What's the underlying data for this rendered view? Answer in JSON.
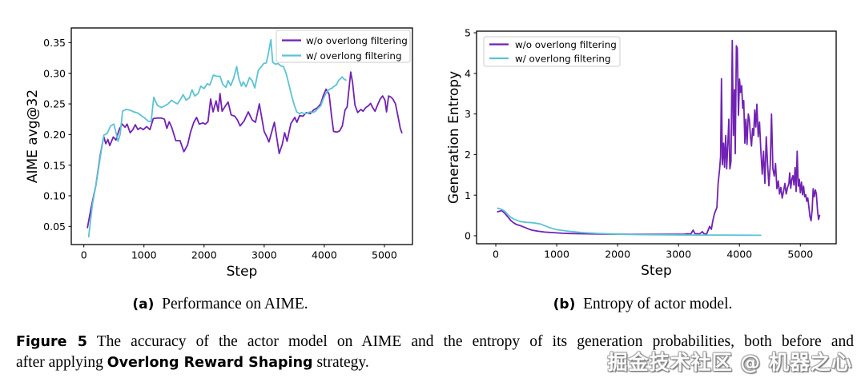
{
  "captions": {
    "a_tag": "(a)",
    "a_text": " Performance on AIME.",
    "b_tag": "(b)",
    "b_text": " Entropy of actor model.",
    "figure_label": "Figure 5",
    "figure_line1": " The accuracy of the actor model on AIME and the entropy of its generation probabilities, both before and",
    "figure_line2_pre": "after applying ",
    "figure_line2_bold": "Overlong Reward Shaping",
    "figure_line2_post": " strategy.",
    "watermark": "掘金技术社区 @ 机器之心"
  },
  "colors": {
    "purple": "#7122b4",
    "cyan": "#5bc3d5"
  },
  "chart_data": [
    {
      "type": "line",
      "xlabel": "Step",
      "ylabel": "AIME avg@32",
      "xlim": [
        -209,
        5467
      ],
      "ylim": [
        0.0204,
        0.374
      ],
      "xticks": [
        0,
        1000,
        2000,
        3000,
        4000,
        5000
      ],
      "yticks": [
        0.05,
        0.1,
        0.15,
        0.2,
        0.25,
        0.3,
        0.35
      ],
      "ytick_decimals": 2,
      "grid": false,
      "legend_position": "upper right",
      "series": [
        {
          "name": "w/o overlong filtering",
          "color": "#7122b4",
          "x": [
            60,
            120,
            200,
            270,
            330,
            365,
            400,
            430,
            490,
            535,
            590,
            640,
            685,
            720,
            770,
            815,
            855,
            900,
            940,
            990,
            1045,
            1100,
            1155,
            1220,
            1290,
            1340,
            1380,
            1420,
            1465,
            1530,
            1600,
            1665,
            1725,
            1775,
            1830,
            1875,
            1920,
            1980,
            2020,
            2065,
            2110,
            2150,
            2200,
            2235,
            2265,
            2300,
            2350,
            2400,
            2450,
            2510,
            2555,
            2600,
            2665,
            2735,
            2800,
            2855,
            2920,
            3000,
            3035,
            3080,
            3170,
            3250,
            3300,
            3340,
            3380,
            3445,
            3510,
            3545,
            3590,
            3645,
            3700,
            3765,
            3820,
            3890,
            3940,
            3985,
            4030,
            4080,
            4120,
            4155,
            4210,
            4255,
            4300,
            4345,
            4380,
            4415,
            4440,
            4470,
            4510,
            4555,
            4610,
            4645,
            4690,
            4735,
            4770,
            4805,
            4845,
            4885,
            4930,
            4970,
            5010,
            5035,
            5070,
            5110,
            5140,
            5185,
            5230,
            5265,
            5290
          ],
          "y": [
            0.048,
            0.08,
            0.117,
            0.165,
            0.197,
            0.185,
            0.192,
            0.182,
            0.196,
            0.191,
            0.209,
            0.217,
            0.212,
            0.217,
            0.203,
            0.208,
            0.216,
            0.208,
            0.211,
            0.208,
            0.213,
            0.208,
            0.226,
            0.227,
            0.227,
            0.225,
            0.21,
            0.221,
            0.211,
            0.19,
            0.19,
            0.172,
            0.183,
            0.204,
            0.22,
            0.228,
            0.217,
            0.219,
            0.217,
            0.221,
            0.258,
            0.237,
            0.255,
            0.238,
            0.267,
            0.238,
            0.246,
            0.253,
            0.232,
            0.23,
            0.224,
            0.214,
            0.222,
            0.237,
            0.224,
            0.22,
            0.25,
            0.205,
            0.198,
            0.188,
            0.22,
            0.169,
            0.184,
            0.203,
            0.189,
            0.218,
            0.228,
            0.22,
            0.231,
            0.23,
            0.236,
            0.234,
            0.24,
            0.244,
            0.25,
            0.264,
            0.274,
            0.266,
            0.231,
            0.205,
            0.204,
            0.206,
            0.214,
            0.24,
            0.245,
            0.278,
            0.302,
            0.285,
            0.248,
            0.236,
            0.241,
            0.238,
            0.244,
            0.247,
            0.251,
            0.244,
            0.238,
            0.248,
            0.258,
            0.263,
            0.256,
            0.237,
            0.263,
            0.261,
            0.258,
            0.25,
            0.228,
            0.21,
            0.203
          ]
        },
        {
          "name": "w/ overlong filtering",
          "color": "#5bc3d5",
          "x": [
            80,
            142,
            213,
            276,
            333,
            391,
            444,
            498,
            533,
            569,
            604,
            644,
            702,
            764,
            831,
            898,
            955,
            1013,
            1067,
            1120,
            1164,
            1222,
            1289,
            1347,
            1400,
            1458,
            1502,
            1556,
            1600,
            1653,
            1702,
            1755,
            1800,
            1844,
            1902,
            1946,
            2000,
            2053,
            2098,
            2155,
            2213,
            2266,
            2311,
            2364,
            2400,
            2444,
            2489,
            2542,
            2578,
            2622,
            2653,
            2698,
            2756,
            2800,
            2844,
            2902,
            2947,
            2991,
            3036,
            3067,
            3111,
            3142,
            3187,
            3231,
            3276,
            3320,
            3364,
            3409,
            3453,
            3498,
            3542,
            3587,
            3622,
            3667,
            3720,
            3764,
            3809,
            3853,
            3898,
            3942,
            3987,
            4022,
            4058,
            4089,
            4133,
            4164,
            4200,
            4236,
            4267,
            4298,
            4333,
            4360
          ],
          "y": [
            0.033,
            0.085,
            0.125,
            0.165,
            0.199,
            0.202,
            0.214,
            0.217,
            0.204,
            0.189,
            0.2,
            0.238,
            0.241,
            0.24,
            0.237,
            0.235,
            0.231,
            0.227,
            0.222,
            0.221,
            0.261,
            0.248,
            0.244,
            0.247,
            0.25,
            0.256,
            0.253,
            0.25,
            0.256,
            0.265,
            0.256,
            0.26,
            0.273,
            0.263,
            0.267,
            0.279,
            0.275,
            0.283,
            0.281,
            0.297,
            0.295,
            0.295,
            0.282,
            0.277,
            0.288,
            0.28,
            0.291,
            0.311,
            0.291,
            0.279,
            0.286,
            0.278,
            0.293,
            0.288,
            0.276,
            0.305,
            0.31,
            0.316,
            0.317,
            0.331,
            0.355,
            0.318,
            0.315,
            0.316,
            0.312,
            0.311,
            0.3,
            0.283,
            0.265,
            0.249,
            0.237,
            0.234,
            0.236,
            0.234,
            0.235,
            0.237,
            0.236,
            0.238,
            0.243,
            0.247,
            0.259,
            0.266,
            0.272,
            0.274,
            0.276,
            0.279,
            0.281,
            0.288,
            0.291,
            0.294,
            0.29,
            0.289
          ]
        }
      ]
    },
    {
      "type": "line",
      "xlabel": "Step",
      "ylabel": "Generation Entropy",
      "xlim": [
        -316,
        5588
      ],
      "ylim": [
        -0.197,
        5.04
      ],
      "xticks": [
        0,
        1000,
        2000,
        3000,
        4000,
        5000
      ],
      "yticks": [
        0,
        1,
        2,
        3,
        4,
        5
      ],
      "ytick_decimals": 0,
      "grid": false,
      "legend_position": "upper left",
      "series": [
        {
          "name": "w/o overlong filtering",
          "color": "#7122b4",
          "x": [
            30,
            100,
            150,
            200,
            250,
            300,
            350,
            400,
            450,
            500,
            550,
            600,
            700,
            800,
            900,
            1000,
            1100,
            1200,
            1400,
            1600,
            1800,
            2000,
            2200,
            2400,
            2600,
            2800,
            3000,
            3100,
            3150,
            3200,
            3240,
            3270,
            3310,
            3350,
            3390,
            3420,
            3460,
            3510,
            3540,
            3560,
            3590,
            3610,
            3630,
            3650,
            3675,
            3690,
            3705,
            3720,
            3740,
            3755,
            3775,
            3790,
            3810,
            3826,
            3843,
            3861,
            3883,
            3900,
            3918,
            3931,
            3949,
            3966,
            3984,
            4001,
            4018,
            4036,
            4054,
            4071,
            4089,
            4106,
            4124,
            4146,
            4163,
            4181,
            4198,
            4216,
            4233,
            4251,
            4269,
            4286,
            4308,
            4330,
            4352,
            4374,
            4396,
            4418,
            4440,
            4462,
            4484,
            4506,
            4527,
            4549,
            4571,
            4593,
            4615,
            4637,
            4659,
            4680,
            4702,
            4724,
            4747,
            4768,
            4790,
            4812,
            4825,
            4843,
            4860,
            4878,
            4895,
            4913,
            4930,
            4948,
            4966,
            4983,
            5000,
            5018,
            5036,
            5053,
            5071,
            5088,
            5106,
            5123,
            5141,
            5158,
            5176,
            5193,
            5211,
            5228,
            5246,
            5263,
            5281,
            5299,
            5316
          ],
          "y": [
            0.59,
            0.62,
            0.55,
            0.46,
            0.37,
            0.31,
            0.27,
            0.25,
            0.22,
            0.19,
            0.16,
            0.135,
            0.11,
            0.09,
            0.08,
            0.07,
            0.06,
            0.055,
            0.05,
            0.045,
            0.04,
            0.04,
            0.038,
            0.036,
            0.035,
            0.035,
            0.035,
            0.04,
            0.05,
            0.04,
            0.14,
            0.05,
            0.05,
            0.05,
            0.1,
            0.05,
            0.04,
            0.23,
            0.16,
            0.35,
            0.55,
            0.62,
            0.7,
            1.28,
            1.65,
            1.95,
            3.87,
            1.75,
            2.28,
            1.69,
            2.47,
            1.65,
            2.28,
            2.87,
            1.65,
            1.83,
            4.81,
            2.47,
            3.6,
            2.02,
            4.68,
            4.61,
            2.97,
            3.86,
            3.53,
            3.7,
            3.14,
            3.33,
            2.28,
            2.87,
            2.25,
            3.0,
            2.87,
            2.44,
            2.21,
            2.64,
            2.47,
            3.1,
            2.68,
            3.24,
            2.44,
            2.8,
            2.08,
            1.52,
            2.08,
            1.29,
            2.44,
            1.75,
            1.23,
            1.75,
            3.0,
            1.65,
            1.47,
            1.78,
            1.16,
            1.35,
            1.03,
            1.19,
            0.93,
            1.09,
            1.29,
            1.03,
            1.19,
            1.29,
            1.55,
            1.17,
            1.39,
            1.48,
            1.25,
            1.68,
            1.09,
            2.08,
            1.22,
            1.39,
            1.06,
            1.32,
            1.01,
            1.22,
            0.96,
            1.01,
            0.85,
            0.93,
            0.7,
            0.47,
            0.37,
            0.63,
            1.16,
            0.96,
            1.13,
            1.03,
            0.63,
            0.4,
            0.5
          ]
        },
        {
          "name": "w/ overlong filtering",
          "color": "#5bc3d5",
          "x": [
            30,
            100,
            150,
            200,
            250,
            300,
            350,
            400,
            450,
            500,
            600,
            700,
            750,
            800,
            850,
            900,
            950,
            1000,
            1100,
            1200,
            1300,
            1400,
            1500,
            1700,
            1900,
            2100,
            2300,
            2600,
            3000,
            3400,
            3800,
            4100,
            4350
          ],
          "y": [
            0.68,
            0.65,
            0.6,
            0.52,
            0.45,
            0.41,
            0.38,
            0.35,
            0.34,
            0.33,
            0.32,
            0.3,
            0.28,
            0.25,
            0.22,
            0.19,
            0.17,
            0.15,
            0.13,
            0.11,
            0.095,
            0.08,
            0.07,
            0.055,
            0.045,
            0.035,
            0.03,
            0.025,
            0.02,
            0.018,
            0.015,
            0.013,
            0.012
          ]
        }
      ]
    }
  ]
}
